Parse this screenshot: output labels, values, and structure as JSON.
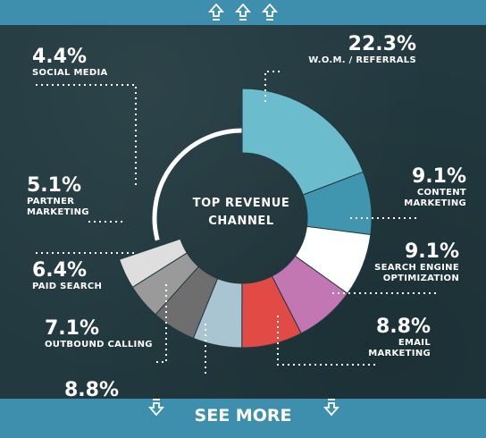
{
  "center_title": [
    "TOP REVENUE",
    "CHANNEL"
  ],
  "see_more_label": "SEE MORE",
  "chart_data": {
    "type": "pie",
    "variant": "donut",
    "title": "TOP REVENUE CHANNEL",
    "slices": [
      {
        "label": "W.O.M. / REFERRALS",
        "value": 22.3,
        "display": "22.3%",
        "color": "#6bbccc"
      },
      {
        "label": "CONTENT MARKETING",
        "value": 9.1,
        "display": "9.1%",
        "color": "#3f96ae"
      },
      {
        "label": "SEARCH ENGINE OPTIMIZATION",
        "value": 9.1,
        "display": "9.1%",
        "color": "#ffffff"
      },
      {
        "label": "EMAIL MARKETING",
        "value": 8.8,
        "display": "8.8%",
        "color": "#c276b2"
      },
      {
        "label": "",
        "value": 8.8,
        "display": "8.8%",
        "color": "#e24a45"
      },
      {
        "label": "OUTBOUND CALLING",
        "value": 7.1,
        "display": "7.1%",
        "color": "#a9c5d1"
      },
      {
        "label": "PAID SEARCH",
        "value": 6.4,
        "display": "6.4%",
        "color": "#6e6e6e"
      },
      {
        "label": "PARTNER MARKETING",
        "value": 5.1,
        "display": "5.1%",
        "color": "#9a9a9a"
      },
      {
        "label": "SOCIAL MEDIA",
        "value": 4.4,
        "display": "4.4%",
        "color": "#dedede"
      }
    ],
    "legend": "labels around chart"
  },
  "labels": {
    "wom": {
      "pct": "22.3%",
      "l1": "W.O.M. / REFERRALS",
      "l2": ""
    },
    "content": {
      "pct": "9.1%",
      "l1": "CONTENT",
      "l2": "MARKETING"
    },
    "seo": {
      "pct": "9.1%",
      "l1": "SEARCH ENGINE",
      "l2": "OPTIMIZATION"
    },
    "email": {
      "pct": "8.8%",
      "l1": "EMAIL",
      "l2": "MARKETING"
    },
    "unnamed": {
      "pct": "8.8%"
    },
    "outbound": {
      "pct": "7.1%",
      "l1": "OUTBOUND CALLING"
    },
    "paid": {
      "pct": "6.4%",
      "l1": "PAID SEARCH"
    },
    "partner": {
      "pct": "5.1%",
      "l1": "PARTNER",
      "l2": "MARKETING"
    },
    "social": {
      "pct": "4.4%",
      "l1": "SOCIAL MEDIA"
    }
  }
}
